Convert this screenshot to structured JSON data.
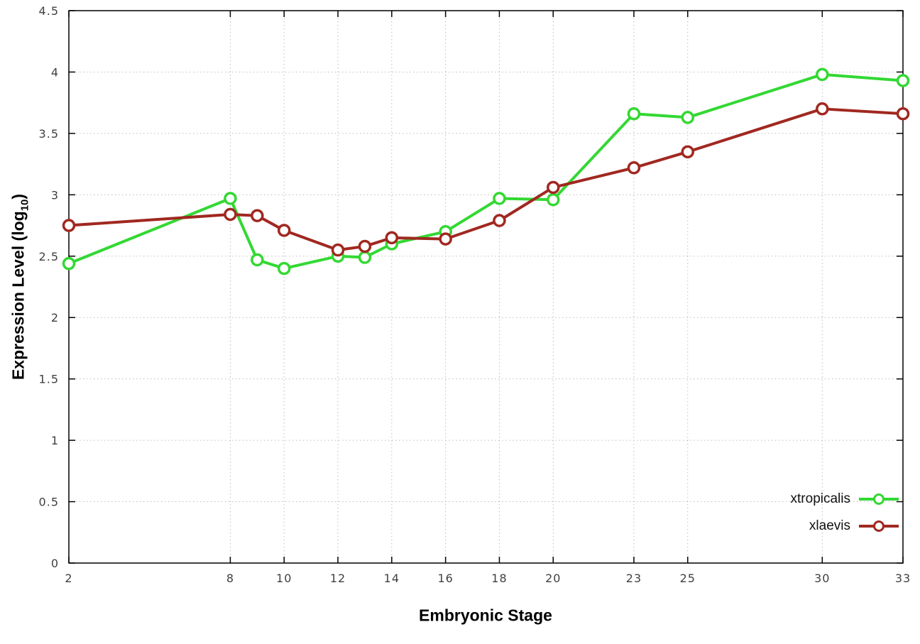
{
  "chart_data": {
    "type": "line",
    "title": "",
    "xlabel": "Embryonic Stage",
    "ylabel": "Expression Level (log10)",
    "ylabel_parts": {
      "prefix": "Expression Level (log",
      "sub": "10",
      "suffix": ")"
    },
    "xlim": [
      2,
      33
    ],
    "ylim": [
      0,
      4.5
    ],
    "x_ticks": [
      2,
      8,
      10,
      12,
      14,
      16,
      18,
      20,
      23,
      25,
      30,
      33
    ],
    "y_ticks": [
      0,
      0.5,
      1,
      1.5,
      2,
      2.5,
      3,
      3.5,
      4,
      4.5
    ],
    "y_tick_labels": [
      "0",
      "0.5",
      "1",
      "1.5",
      "2",
      "2.5",
      "3",
      "3.5",
      "4",
      "4.5"
    ],
    "grid": true,
    "legend_position": "bottom-right-inside",
    "x": [
      2,
      8,
      9,
      10,
      12,
      13,
      14,
      16,
      18,
      20,
      23,
      25,
      30,
      33
    ],
    "series": [
      {
        "name": "xtropicalis",
        "color": "#33d833",
        "values": [
          2.44,
          2.97,
          2.47,
          2.4,
          2.5,
          2.49,
          2.6,
          2.7,
          2.97,
          2.96,
          3.66,
          3.63,
          3.98,
          3.93
        ]
      },
      {
        "name": "xlaevis",
        "color": "#a02820",
        "values": [
          2.75,
          2.84,
          2.83,
          2.71,
          2.55,
          2.58,
          2.65,
          2.64,
          2.79,
          3.06,
          3.22,
          3.35,
          3.7,
          3.66
        ]
      }
    ],
    "style": {
      "grid_color": "#bdbdbd",
      "border_color": "#000000",
      "tick_label_color": "#404040",
      "background": "#ffffff"
    }
  }
}
